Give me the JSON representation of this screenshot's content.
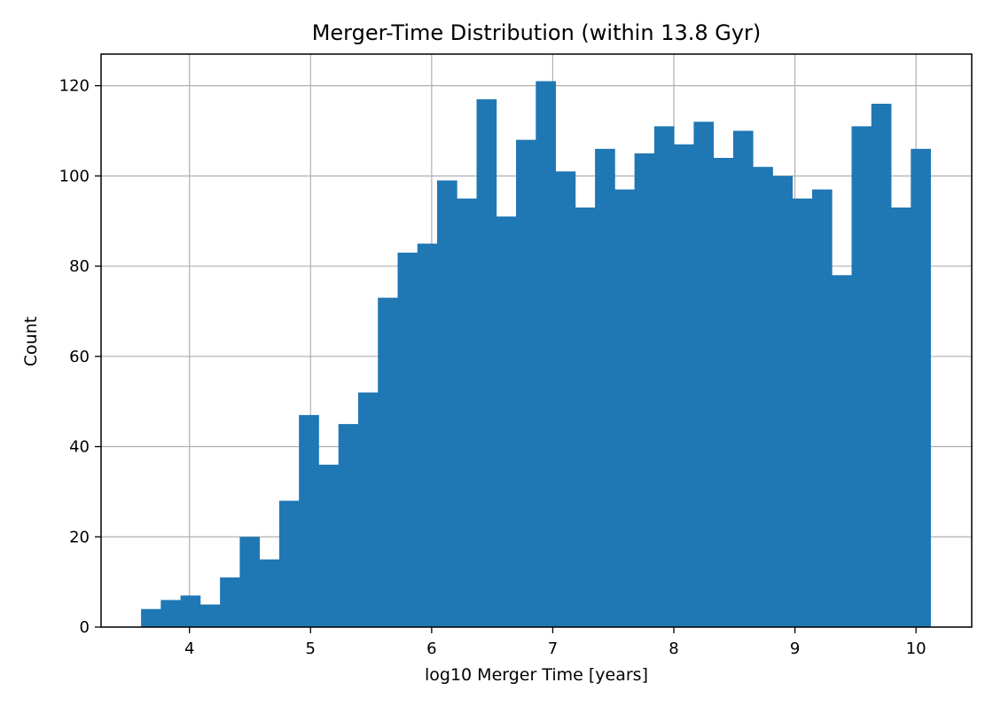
{
  "chart_data": {
    "type": "bar",
    "title": "Merger-Time Distribution (within 13.8 Gyr)",
    "xlabel": "log10 Merger Time [years]",
    "ylabel": "Count",
    "xlim": [
      3.27,
      10.46
    ],
    "ylim": [
      0,
      127
    ],
    "xticks": [
      4,
      5,
      6,
      7,
      8,
      9,
      10
    ],
    "yticks": [
      0,
      20,
      40,
      60,
      80,
      100,
      120
    ],
    "grid": true,
    "bar_color": "#1f77b4",
    "bins": {
      "start": 3.6,
      "end": 10.12,
      "count": 40
    },
    "values": [
      4,
      6,
      7,
      5,
      11,
      20,
      15,
      28,
      47,
      36,
      45,
      52,
      73,
      83,
      85,
      99,
      95,
      117,
      91,
      108,
      121,
      101,
      93,
      106,
      97,
      105,
      111,
      107,
      112,
      104,
      110,
      102,
      100,
      95,
      97,
      78,
      111,
      116,
      93,
      106
    ]
  }
}
